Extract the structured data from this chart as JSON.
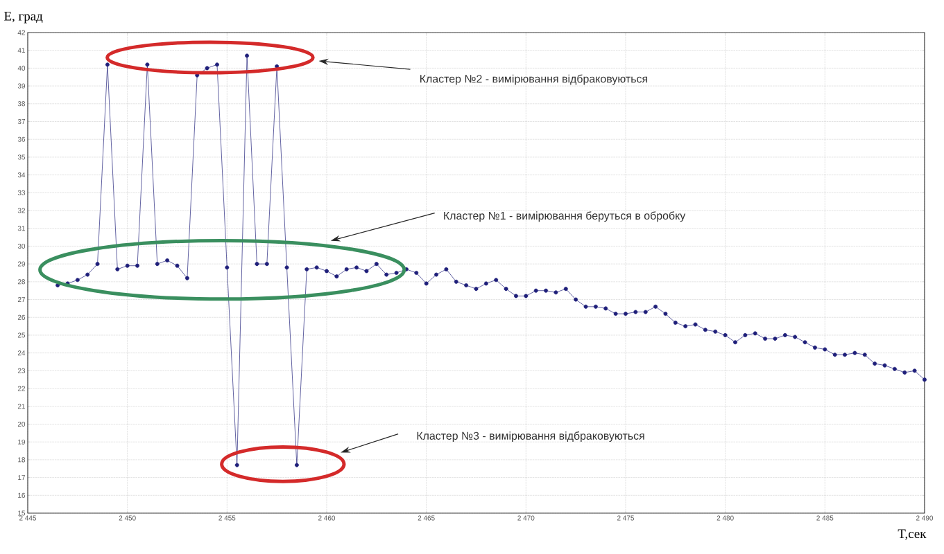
{
  "chart_data": {
    "type": "line",
    "xlabel": "T,сек",
    "ylabel": "E, град",
    "x": [
      2446.5,
      2447,
      2447.5,
      2448,
      2448.5,
      2449,
      2449.5,
      2450,
      2450.5,
      2451,
      2451.5,
      2452,
      2452.5,
      2453,
      2453.5,
      2454,
      2454.5,
      2455,
      2455.5,
      2456,
      2456.5,
      2457,
      2457.5,
      2458,
      2458.5,
      2459,
      2459.5,
      2460,
      2460.5,
      2461,
      2461.5,
      2462,
      2462.5,
      2463,
      2463.5,
      2464,
      2464.5,
      2465,
      2465.5,
      2466,
      2466.5,
      2467,
      2467.5,
      2468,
      2468.5,
      2469,
      2469.5,
      2470,
      2470.5,
      2471,
      2471.5,
      2472,
      2472.5,
      2473,
      2473.5,
      2474,
      2474.5,
      2475,
      2475.5,
      2476,
      2476.5,
      2477,
      2477.5,
      2478,
      2478.5,
      2479,
      2479.5,
      2480,
      2480.5,
      2481,
      2481.5,
      2482,
      2482.5,
      2483,
      2483.5,
      2484,
      2484.5,
      2485,
      2485.5,
      2486,
      2486.5,
      2487,
      2487.5,
      2488,
      2488.5,
      2489,
      2489.5,
      2490
    ],
    "series": [
      {
        "color": "#1f1f7a",
        "values": [
          27.8,
          27.9,
          28.1,
          28.4,
          29.0,
          40.2,
          28.7,
          28.9,
          28.9,
          40.2,
          29.0,
          29.2,
          28.9,
          28.2,
          39.6,
          40.0,
          40.2,
          28.8,
          17.7,
          40.7,
          29.0,
          29.0,
          40.1,
          28.8,
          17.7,
          28.7,
          28.8,
          28.6,
          28.3,
          28.7,
          28.8,
          28.6,
          29.0,
          28.4,
          28.5,
          28.7,
          28.5,
          27.9,
          28.4,
          28.7,
          28.0,
          27.8,
          27.6,
          27.9,
          28.1,
          27.6,
          27.2,
          27.2,
          27.5,
          27.5,
          27.4,
          27.6,
          27.0,
          26.6,
          26.6,
          26.5,
          26.2,
          26.2,
          26.3,
          26.3,
          26.6,
          26.2,
          25.7,
          25.5,
          25.6,
          25.3,
          25.2,
          25.0,
          24.6,
          25.0,
          25.1,
          24.8,
          24.8,
          25.0,
          24.9,
          24.6,
          24.3,
          24.2,
          23.9,
          23.9,
          24.0,
          23.9,
          23.4,
          23.3,
          23.1,
          22.9,
          23.0,
          22.5
        ]
      }
    ],
    "xlim": [
      2445,
      2490
    ],
    "xticks": [
      {
        "value": 2445,
        "label": "2 445"
      },
      {
        "value": 2450,
        "label": "2 450"
      },
      {
        "value": 2455,
        "label": "2 455"
      },
      {
        "value": 2460,
        "label": "2 460"
      },
      {
        "value": 2465,
        "label": "2 465"
      },
      {
        "value": 2470,
        "label": "2 470"
      },
      {
        "value": 2475,
        "label": "2 475"
      },
      {
        "value": 2480,
        "label": "2 480"
      },
      {
        "value": 2485,
        "label": "2 485"
      },
      {
        "value": 2490,
        "label": "2 490"
      }
    ],
    "ylim": [
      15,
      42
    ],
    "yticks": [
      15,
      16,
      17,
      18,
      19,
      20,
      21,
      22,
      23,
      24,
      25,
      26,
      27,
      28,
      29,
      30,
      31,
      32,
      33,
      34,
      35,
      36,
      37,
      38,
      39,
      40,
      41,
      42
    ],
    "grid": true,
    "marker": "circle",
    "line_style": "solid",
    "annotations": [
      "Кластер №2 - вимірювання відбраковуються",
      "Кластер №1 - вимірювання беруться в обробку",
      "Кластер №3 - вимірювання відбраковуються"
    ]
  }
}
